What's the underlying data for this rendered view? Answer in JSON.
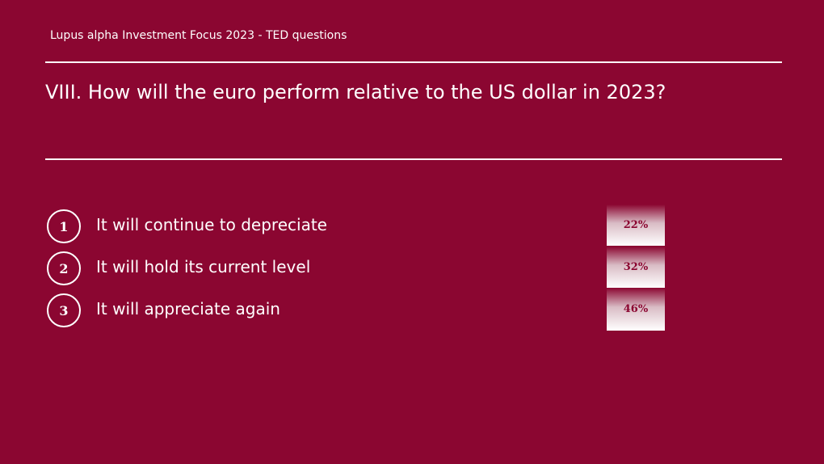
{
  "header": {
    "title": "Lupus alpha Investment Focus 2023 - TED questions"
  },
  "question": "VIII. How will the euro perform relative to the US dollar in 2023?",
  "options": [
    {
      "number": "1",
      "text": "It will continue to depreciate",
      "result": "22%"
    },
    {
      "number": "2",
      "text": "It will hold its current level",
      "result": "32%"
    },
    {
      "number": "3",
      "text": "It will appreciate again",
      "result": "46%"
    }
  ]
}
